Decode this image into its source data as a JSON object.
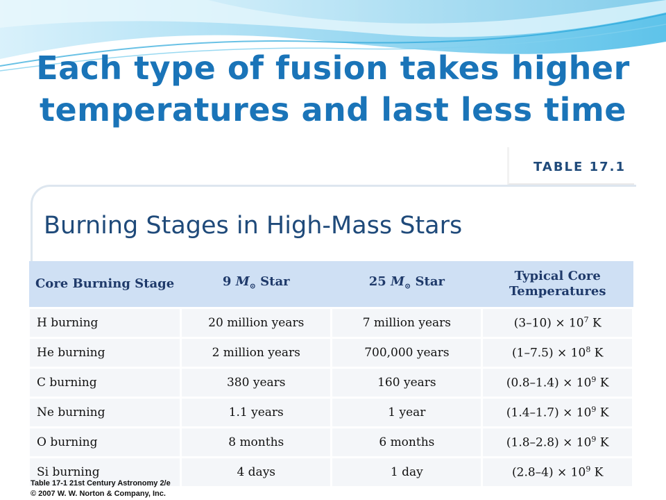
{
  "slide": {
    "title_line1": "Each type of fusion takes higher",
    "title_line2": "temperatures and last less time",
    "accent_color": "#1a74b8"
  },
  "table": {
    "tag": "TABLE 17.1",
    "heading": "Burning Stages in High-Mass Stars",
    "headers": {
      "stage": "Core Burning Stage",
      "star9_num": "9",
      "star9_suffix": "Star",
      "star25_num": "25",
      "star25_suffix": "Star",
      "temp_line1": "Typical Core",
      "temp_line2": "Temperatures"
    },
    "rows": [
      {
        "stage": "H burning",
        "s9": "20 million years",
        "s25": "7 million years",
        "temp": "(3–10) × 10",
        "exp": "7",
        "unit": "K"
      },
      {
        "stage": "He burning",
        "s9": "2 million years",
        "s25": "700,000 years",
        "temp": "(1–7.5) × 10",
        "exp": "8",
        "unit": "K"
      },
      {
        "stage": "C burning",
        "s9": "380 years",
        "s25": "160 years",
        "temp": "(0.8–1.4) × 10",
        "exp": "9",
        "unit": "K"
      },
      {
        "stage": "Ne burning",
        "s9": "1.1 years",
        "s25": "1 year",
        "temp": "(1.4–1.7) × 10",
        "exp": "9",
        "unit": "K"
      },
      {
        "stage": "O burning",
        "s9": "8 months",
        "s25": "6 months",
        "temp": "(1.8–2.8) × 10",
        "exp": "9",
        "unit": "K"
      },
      {
        "stage": "Si burning",
        "s9": "4 days",
        "s25": "1 day",
        "temp": "(2.8–4) × 10",
        "exp": "9",
        "unit": "K"
      }
    ]
  },
  "footer": {
    "line1": "Table 17-1  21st Century Astronomy 2/e",
    "line2": "© 2007 W. W. Norton & Company, Inc."
  }
}
